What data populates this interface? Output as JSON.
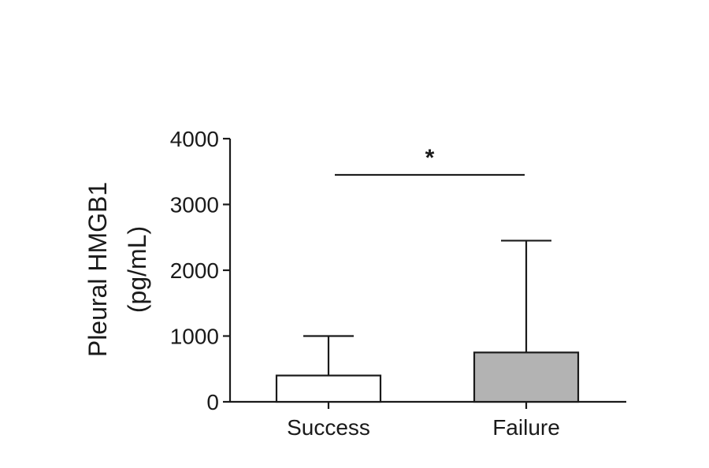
{
  "chart_data": {
    "type": "bar",
    "categories": [
      "Success",
      "Failure"
    ],
    "values": [
      400,
      750
    ],
    "error_upper": [
      1000,
      2450
    ],
    "bar_colors": [
      "#ffffff",
      "#b3b3b3"
    ],
    "ylabel_line1": "Pleural HMGB1",
    "ylabel_line2": "(pg/mL)",
    "ylim": [
      0,
      4000
    ],
    "yticks": [
      0,
      1000,
      2000,
      3000,
      4000
    ],
    "ytick_labels": [
      "0",
      "1000",
      "2000",
      "3000",
      "4000"
    ],
    "grid": false,
    "significance": {
      "label": "*",
      "between": [
        "Success",
        "Failure"
      ],
      "level": 3450
    }
  }
}
